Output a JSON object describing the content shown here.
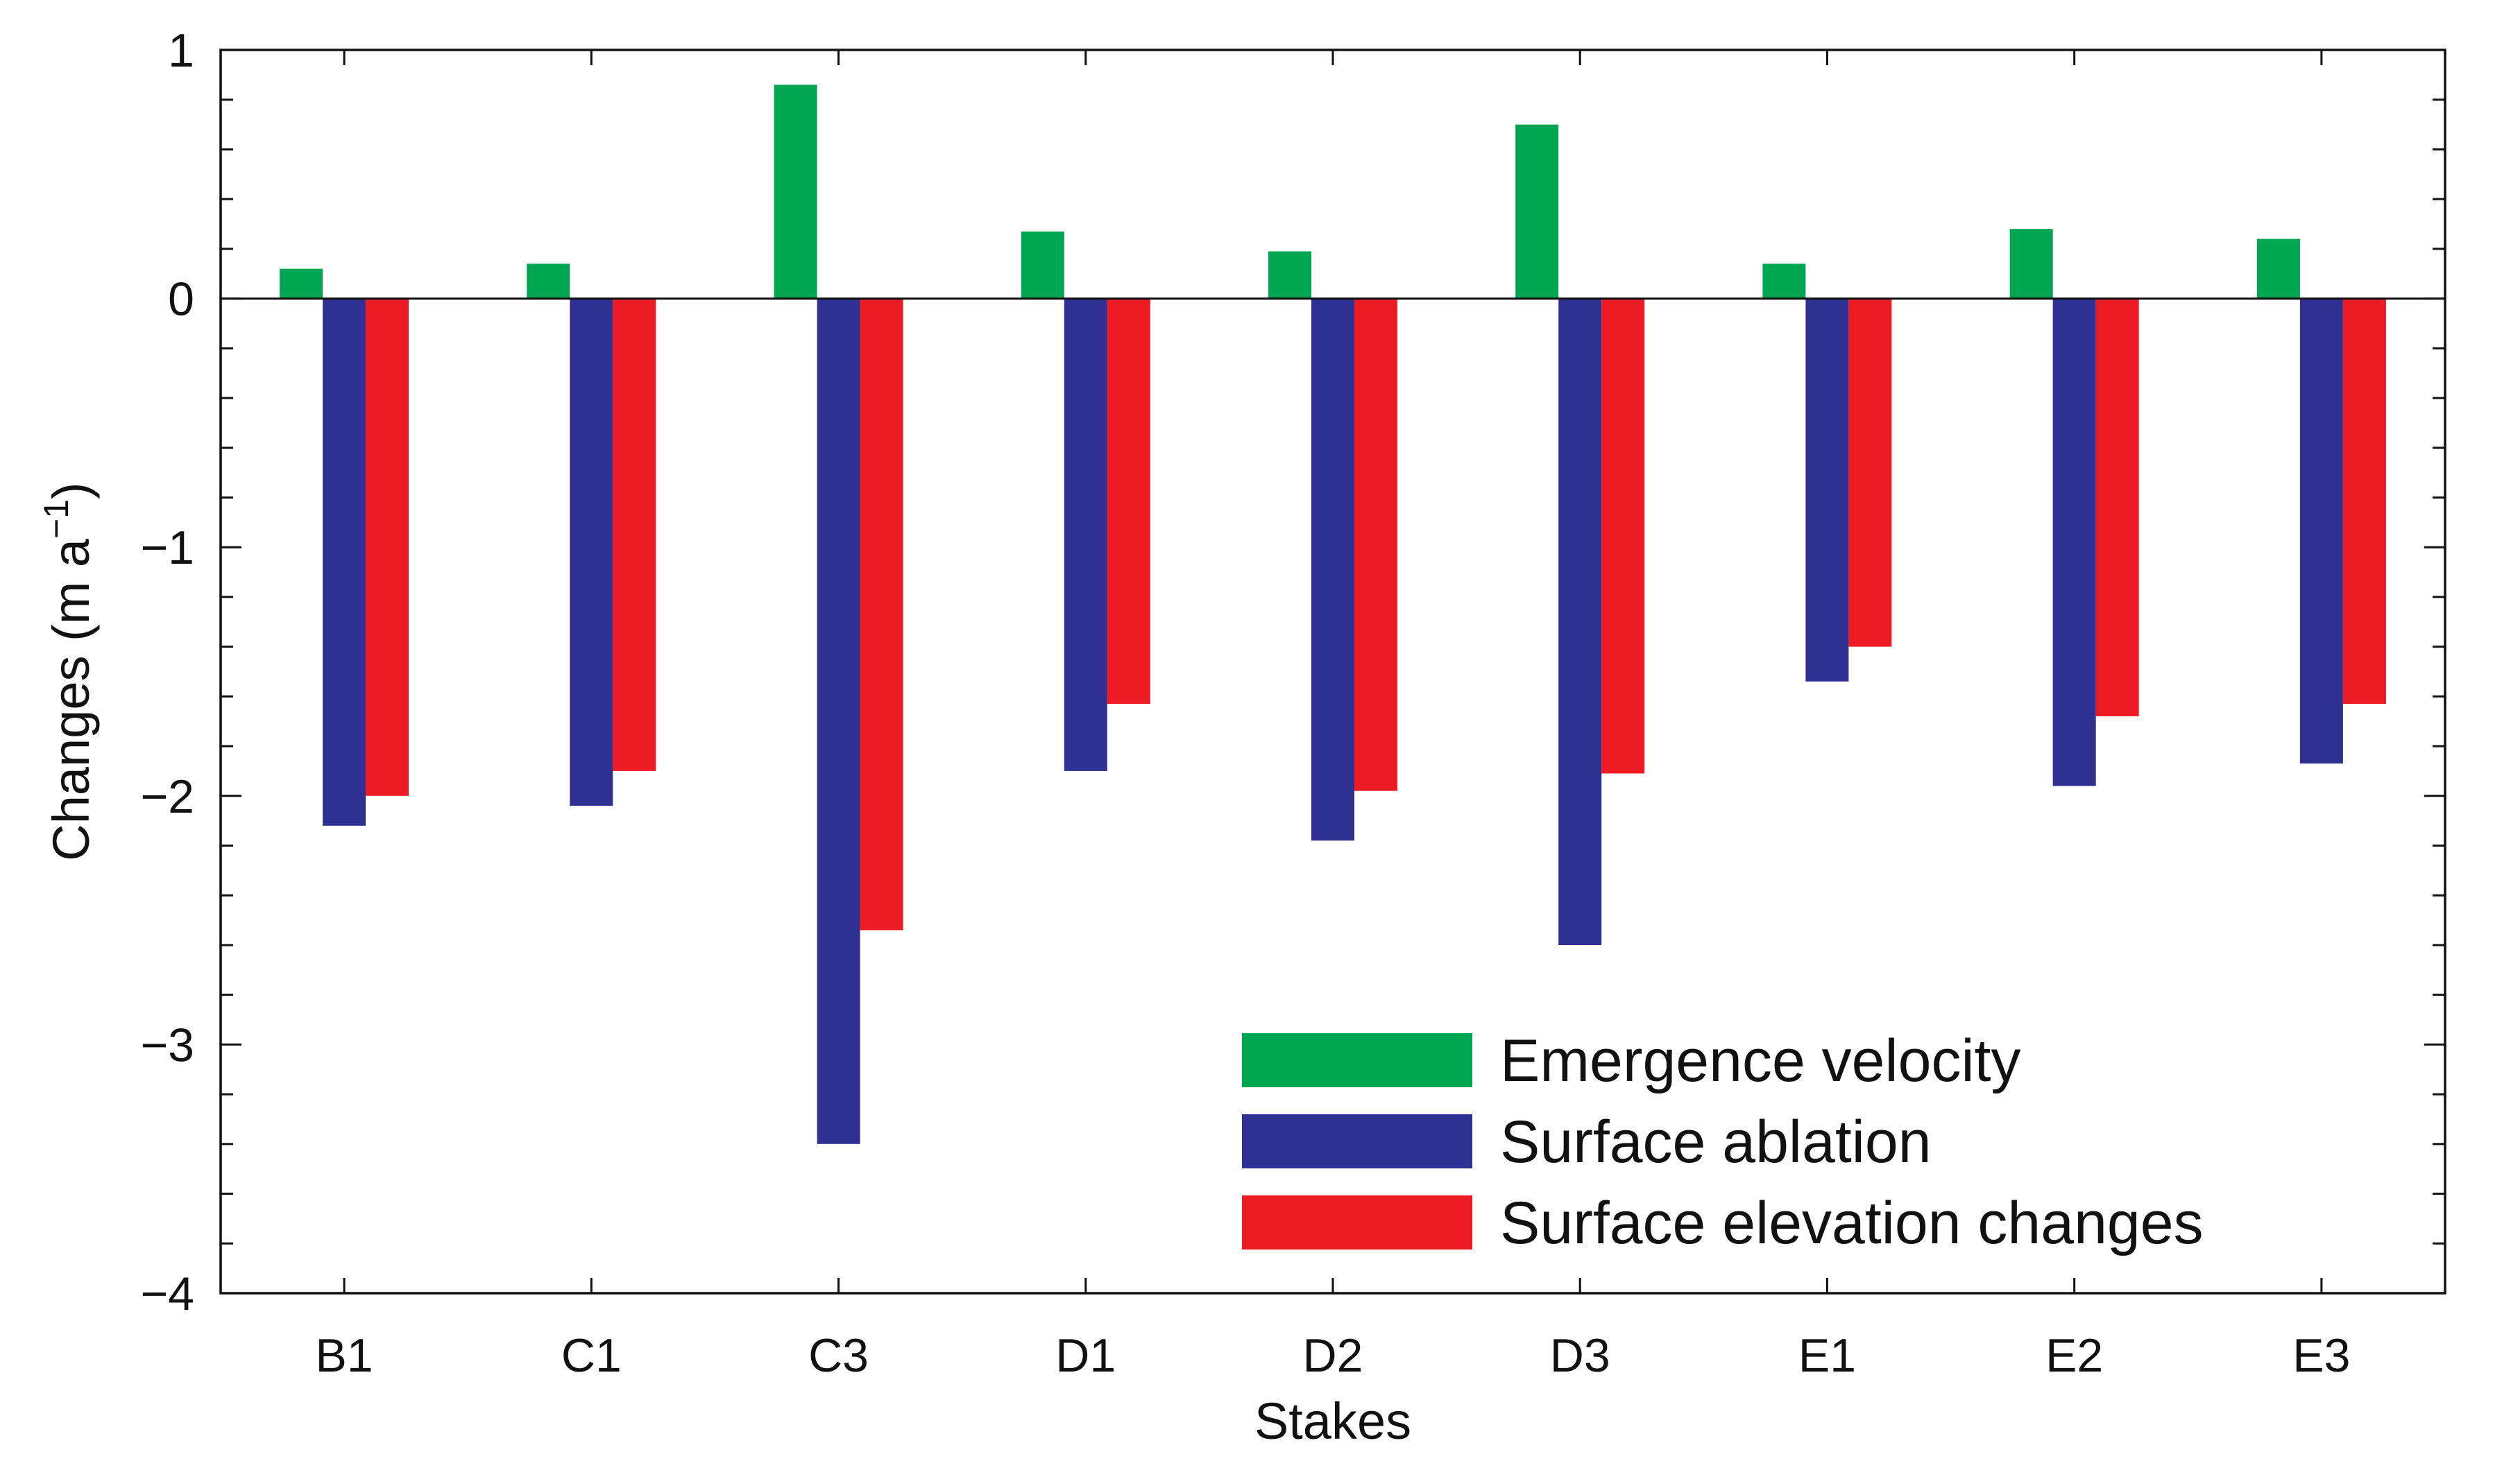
{
  "chart_data": {
    "type": "bar",
    "title": "",
    "xlabel": "Stakes",
    "ylabel_main": "Changes (m a",
    "ylabel_sup": "−1",
    "ylabel_close": ")",
    "ylim": [
      -4,
      1
    ],
    "yticks": [
      1,
      0,
      -1,
      -2,
      -3,
      -4
    ],
    "ytick_labels": [
      "1",
      "0",
      "−1",
      "−2",
      "−3",
      "−4"
    ],
    "y_minor_step": 0.2,
    "categories": [
      "B1",
      "C1",
      "C3",
      "D1",
      "D2",
      "D3",
      "E1",
      "E2",
      "E3"
    ],
    "legend_position": "bottom-right",
    "series": [
      {
        "name": "Emergence velocity",
        "color": "#00a651",
        "values": [
          0.12,
          0.14,
          0.86,
          0.27,
          0.19,
          0.7,
          0.14,
          0.28,
          0.24
        ]
      },
      {
        "name": "Surface ablation",
        "color": "#2e3192",
        "values": [
          -2.12,
          -2.04,
          -3.4,
          -1.9,
          -2.18,
          -2.6,
          -1.54,
          -1.96,
          -1.87
        ]
      },
      {
        "name": "Surface elevation changes",
        "color": "#ed1c24",
        "values": [
          -2.0,
          -1.9,
          -2.54,
          -1.63,
          -1.98,
          -1.91,
          -1.4,
          -1.68,
          -1.63
        ]
      }
    ]
  }
}
